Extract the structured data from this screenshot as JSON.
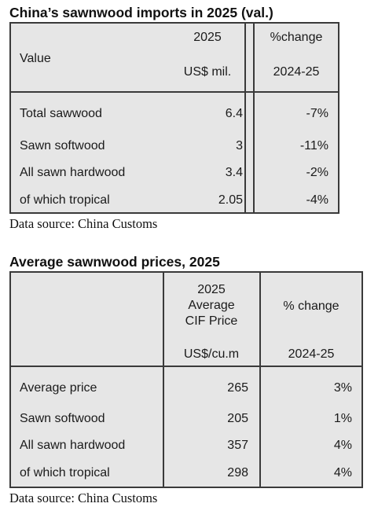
{
  "table1": {
    "title": "China’s sawnwood imports in 2025 (val.)",
    "header": {
      "label": "Value",
      "col1_line1": "2025",
      "col1_line2": "US$ mil.",
      "col2_line1": "%change",
      "col2_line2": "2024-25"
    },
    "rows": [
      {
        "label": "Total sawwood",
        "value": "6.4",
        "change": "-7%"
      },
      {
        "label": "Sawn softwood",
        "value": "3",
        "change": "-11%"
      },
      {
        "label": "All sawn hardwood",
        "value": "3.4",
        "change": "-2%"
      },
      {
        "label": "of which tropical",
        "value": "2.05",
        "change": "-4%"
      }
    ],
    "source": "Data source: China Customs"
  },
  "table2": {
    "title": "Average sawnwood prices, 2025",
    "header": {
      "col1_line1": "2025",
      "col1_line2": "Average",
      "col1_line3": "CIF Price",
      "col1_unit": "US$/cu.m",
      "col2_line1": "% change",
      "col2_line2": "2024-25"
    },
    "rows": [
      {
        "label": "Average price",
        "value": "265",
        "change": "3%"
      },
      {
        "label": "Sawn softwood",
        "value": "205",
        "change": "1%"
      },
      {
        "label": "All sawn hardwood",
        "value": "357",
        "change": "4%"
      },
      {
        "label": "of which tropical",
        "value": "298",
        "change": "4%"
      }
    ],
    "source": "Data source: China Customs"
  },
  "colors": {
    "cell_background": "#e6e6e6",
    "border": "#3a3a3a"
  }
}
